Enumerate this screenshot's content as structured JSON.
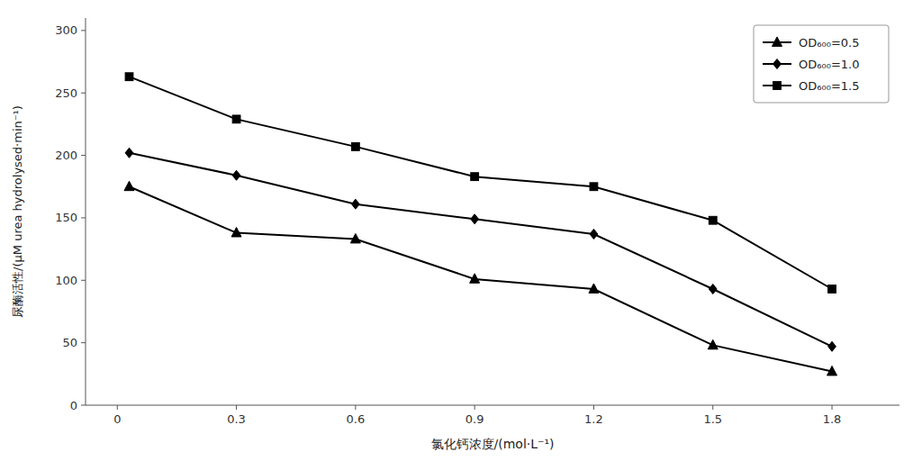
{
  "chart_data": {
    "type": "line",
    "xlabel": "氯化钙浓度/(mol·L⁻¹)",
    "ylabel": "尿酶活性/(μM urea hydrolysed·min⁻¹)",
    "x": [
      0.03,
      0.3,
      0.6,
      0.9,
      1.2,
      1.5,
      1.8
    ],
    "series": [
      {
        "name": "OD₆₀₀=0.5",
        "values": [
          175,
          138,
          133,
          101,
          93,
          48,
          27
        ],
        "marker": "triangle",
        "color": "#000000"
      },
      {
        "name": "OD₆₀₀=1.0",
        "values": [
          202,
          184,
          161,
          149,
          137,
          93,
          47
        ],
        "marker": "diamond",
        "color": "#000000"
      },
      {
        "name": "OD₆₀₀=1.5",
        "values": [
          263,
          229,
          207,
          183,
          175,
          148,
          93
        ],
        "marker": "square",
        "color": "#000000"
      }
    ],
    "xlim": [
      -0.08,
      1.97
    ],
    "xticks": [
      0,
      0.3,
      0.6,
      0.9,
      1.2,
      1.5,
      1.8
    ],
    "ylim": [
      0,
      310
    ],
    "yticks": [
      0,
      50,
      100,
      150,
      200,
      250,
      300
    ],
    "legend": "upper right",
    "grid": false
  }
}
